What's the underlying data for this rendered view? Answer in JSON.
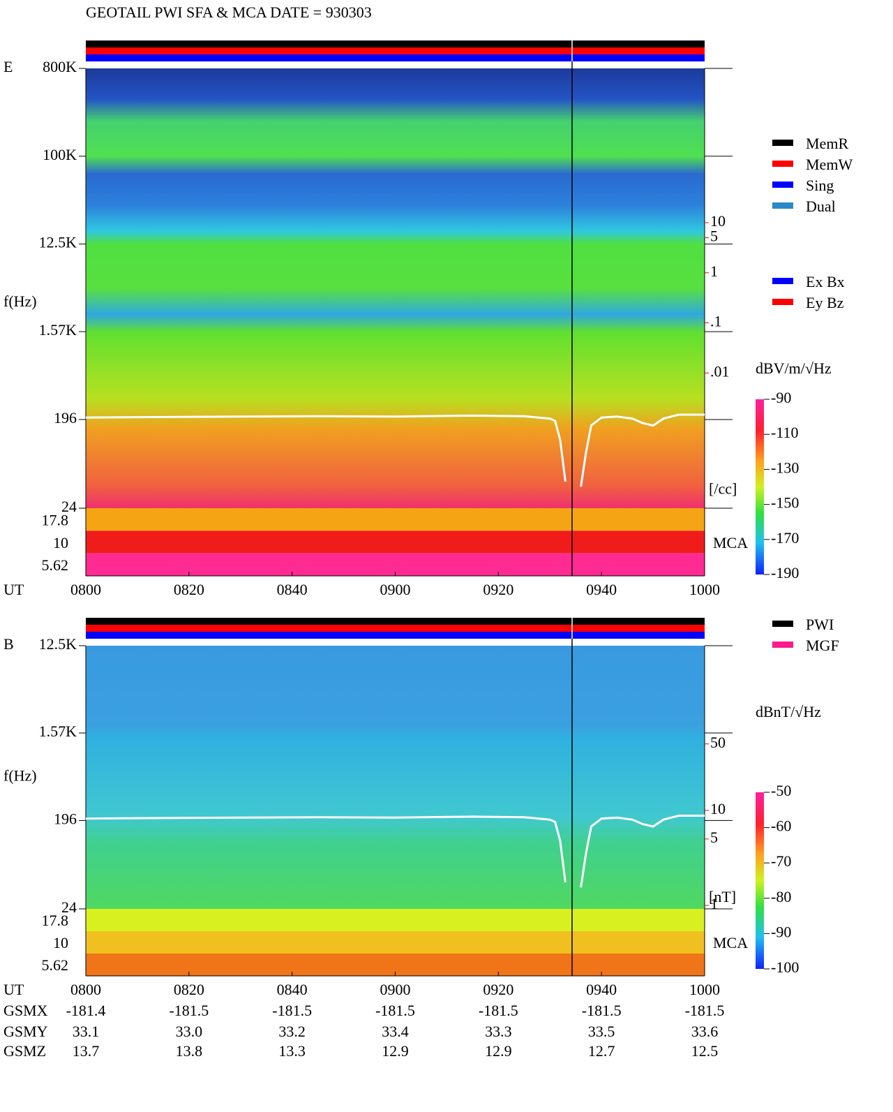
{
  "title": "GEOTAIL  PWI SFA & MCA   DATE = 930303",
  "chart_data": [
    {
      "type": "spectrogram",
      "panel_label": "E",
      "y_label": "f(Hz)",
      "x_label": "UT",
      "xlim": [
        "0800",
        "1000"
      ],
      "xticks": [
        "0800",
        "0820",
        "0840",
        "0900",
        "0920",
        "0940",
        "1000"
      ],
      "log_y": true,
      "ylim": [
        24,
        800000
      ],
      "yticks": [
        {
          "value": 800000,
          "label": "800K"
        },
        {
          "value": 100000,
          "label": "100K"
        },
        {
          "value": 12500,
          "label": "12.5K"
        },
        {
          "value": 1570,
          "label": "1.57K"
        },
        196,
        24
      ],
      "mca_label": "MCA",
      "mca_channels": [
        17.8,
        10,
        5.62
      ],
      "y2_label": "[/cc]",
      "log_y2": true,
      "y2lim": [
        2e-05,
        12000
      ],
      "y2_color": "#ff0000",
      "y2ticks": [
        10,
        5,
        1,
        {
          "value": 0.1,
          "label": ".1"
        },
        {
          "value": 0.01,
          "label": ".01"
        }
      ],
      "trace": {
        "color": "#ffffff",
        "x": [
          "0800",
          "0815",
          "0830",
          "0845",
          "0900",
          "0915",
          "0925",
          "0930",
          "0931",
          "0932",
          "0933",
          "0935",
          "0936",
          "0937",
          "0938",
          "0940",
          "0943",
          "0946",
          "0948",
          "0950",
          "0952",
          "0955",
          "1000"
        ],
        "values": [
          205,
          208,
          210,
          212,
          210,
          215,
          212,
          200,
          190,
          120,
          45,
          null,
          40,
          90,
          170,
          205,
          210,
          200,
          180,
          170,
          200,
          220,
          220
        ]
      },
      "colorbar": {
        "label": "dBV/m/√Hz",
        "lim": [
          -190,
          -90
        ],
        "ticks": [
          -90,
          -110,
          -130,
          -150,
          -170,
          -190
        ]
      },
      "status_legend": [
        {
          "name": "MemR",
          "color": "#000000"
        },
        {
          "name": "MemW",
          "color": "#ff0000"
        },
        {
          "name": "Sing",
          "color": "#0000ff"
        },
        {
          "name": "Dual",
          "color": "#2a8ac8"
        }
      ],
      "component_legend": [
        {
          "name": "Ex Bx",
          "color": "#0000ff"
        },
        {
          "name": "Ey Bz",
          "color": "#ff0000"
        }
      ]
    },
    {
      "type": "spectrogram",
      "panel_label": "B",
      "y_label": "f(Hz)",
      "x_label": "UT",
      "xlim": [
        "0800",
        "1000"
      ],
      "xticks": [
        "0800",
        "0820",
        "0840",
        "0900",
        "0920",
        "0940",
        "1000"
      ],
      "log_y": true,
      "ylim": [
        24,
        12500
      ],
      "yticks": [
        {
          "value": 12500,
          "label": "12.5K"
        },
        {
          "value": 1570,
          "label": "1.57K"
        },
        196,
        24
      ],
      "mca_label": "MCA",
      "mca_channels": [
        17.8,
        10,
        5.62
      ],
      "y2_label": "[nT]",
      "log_y2": true,
      "y2lim": [
        0.92,
        540
      ],
      "y2_color": "#ff0000",
      "y2ticks": [
        50,
        10,
        5,
        1
      ],
      "trace": {
        "color": "#ffffff",
        "x": [
          "0800",
          "0815",
          "0830",
          "0845",
          "0900",
          "0915",
          "0925",
          "0930",
          "0931",
          "0932",
          "0933",
          "0935",
          "0936",
          "0937",
          "0938",
          "0940",
          "0943",
          "0946",
          "0948",
          "0950",
          "0952",
          "0955",
          "1000"
        ],
        "values": [
          205,
          208,
          210,
          212,
          210,
          215,
          212,
          200,
          190,
          120,
          45,
          null,
          40,
          90,
          170,
          205,
          210,
          200,
          180,
          170,
          200,
          220,
          220
        ]
      },
      "colorbar": {
        "label": "dBnT/√Hz",
        "lim": [
          -100,
          -50
        ],
        "ticks": [
          -50,
          -60,
          -70,
          -80,
          -90,
          -100
        ]
      },
      "status_legend": [
        {
          "name": "PWI",
          "color": "#000000"
        },
        {
          "name": "MGF",
          "color": "#ff1a8c"
        }
      ],
      "component_legend": []
    }
  ],
  "footer": {
    "rows": [
      {
        "label": "GSMX",
        "values": [
          "-181.4",
          "-181.5",
          "-181.5",
          "-181.5",
          "-181.5",
          "-181.5",
          "-181.5"
        ]
      },
      {
        "label": "GSMY",
        "values": [
          "33.1",
          "33.0",
          "33.2",
          "33.4",
          "33.3",
          "33.5",
          "33.6"
        ]
      },
      {
        "label": "GSMZ",
        "values": [
          "13.7",
          "13.8",
          "13.3",
          "12.9",
          "12.9",
          "12.7",
          "12.5"
        ]
      }
    ]
  }
}
